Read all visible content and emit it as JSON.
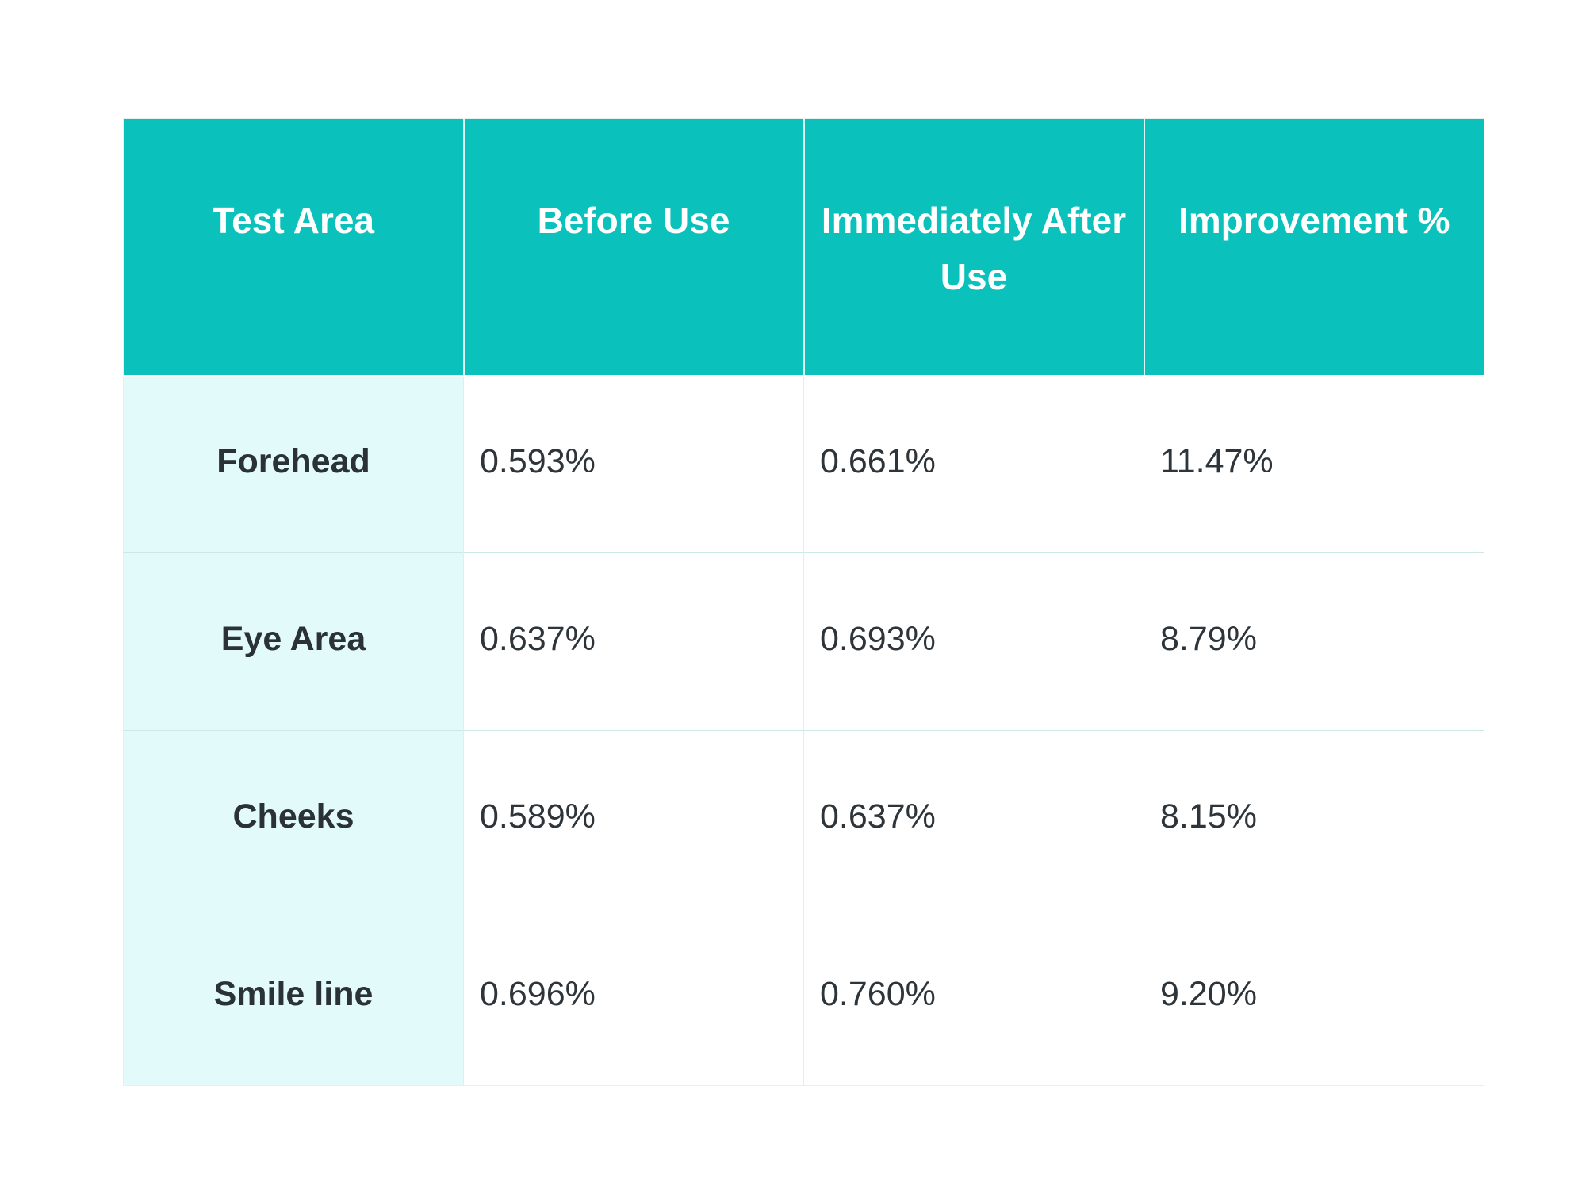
{
  "table": {
    "headers": [
      "Test Area",
      "Before Use",
      "Immediately After Use",
      "Improvement %"
    ],
    "rows": [
      {
        "area": "Forehead",
        "before": "0.593%",
        "after": "0.661%",
        "improvement": "11.47%"
      },
      {
        "area": "Eye Area",
        "before": "0.637%",
        "after": "0.693%",
        "improvement": "8.79%"
      },
      {
        "area": "Cheeks",
        "before": "0.589%",
        "after": "0.637%",
        "improvement": "8.15%"
      },
      {
        "area": "Smile line",
        "before": "0.696%",
        "after": "0.760%",
        "improvement": "9.20%"
      }
    ]
  },
  "chart_data": {
    "type": "table",
    "title": "",
    "columns": [
      "Test Area",
      "Before Use",
      "Immediately After Use",
      "Improvement %"
    ],
    "rows": [
      [
        "Forehead",
        "0.593%",
        "0.661%",
        "11.47%"
      ],
      [
        "Eye Area",
        "0.637%",
        "0.693%",
        "8.79%"
      ],
      [
        "Cheeks",
        "0.589%",
        "0.637%",
        "8.15%"
      ],
      [
        "Smile line",
        "0.696%",
        "0.760%",
        "9.20%"
      ]
    ],
    "categories": [
      "Forehead",
      "Eye Area",
      "Cheeks",
      "Smile line"
    ],
    "series": [
      {
        "name": "Before Use",
        "values": [
          0.593,
          0.637,
          0.589,
          0.696
        ],
        "unit": "%"
      },
      {
        "name": "Immediately After Use",
        "values": [
          0.661,
          0.693,
          0.637,
          0.76
        ],
        "unit": "%"
      },
      {
        "name": "Improvement %",
        "values": [
          11.47,
          8.79,
          8.15,
          9.2
        ],
        "unit": "%"
      }
    ]
  },
  "colors": {
    "header_bg": "#0AC2BB",
    "header_text": "#FFFFFF",
    "area_column_bg": "#E2FAFA",
    "body_text": "#2E353A",
    "row_divider": "#CDE8E5",
    "column_divider": "#DBF1EF",
    "outer_border": "#E3F2F0",
    "page_bg": "#FFFFFF"
  }
}
